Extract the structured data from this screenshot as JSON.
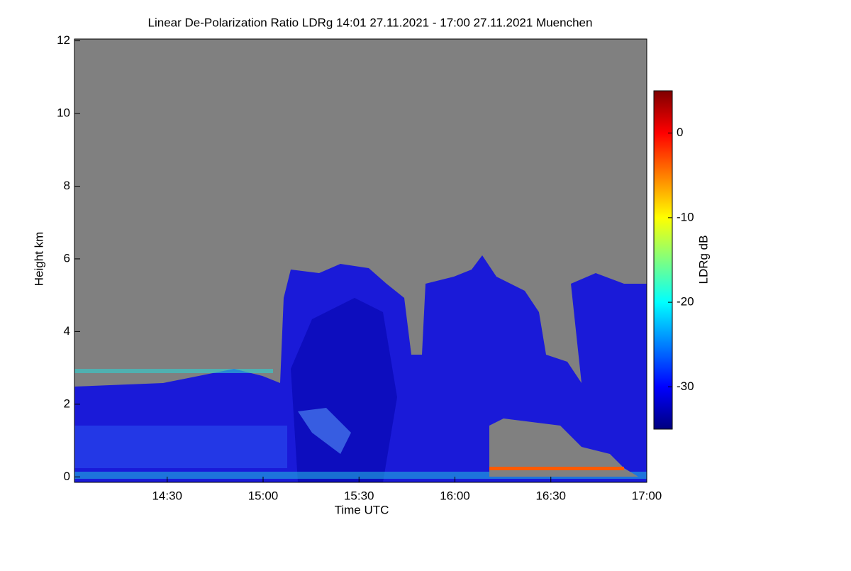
{
  "chart_data": {
    "type": "heatmap",
    "title": "Linear De-Polarization Ratio LDRg   14:01 27.11.2021 - 17:00 27.11.2021 Muenchen",
    "xlabel": "Time UTC",
    "ylabel": "Height km",
    "xlim": [
      14.0167,
      17.0
    ],
    "xticks": [
      {
        "value": 14.5,
        "label": "14:30"
      },
      {
        "value": 15.0,
        "label": "15:00"
      },
      {
        "value": 15.5,
        "label": "15:30"
      },
      {
        "value": 16.0,
        "label": "16:00"
      },
      {
        "value": 16.5,
        "label": "16:30"
      },
      {
        "value": 17.0,
        "label": "17:00"
      }
    ],
    "ylim": [
      -0.15,
      12.05
    ],
    "yticks": [
      0,
      2,
      4,
      6,
      8,
      10,
      12
    ],
    "colorbar_label": "LDRg dB",
    "clim": [
      -35,
      5
    ],
    "colorbar_ticks": [
      0,
      -10,
      -20,
      -30
    ],
    "colormap": "jet"
  }
}
